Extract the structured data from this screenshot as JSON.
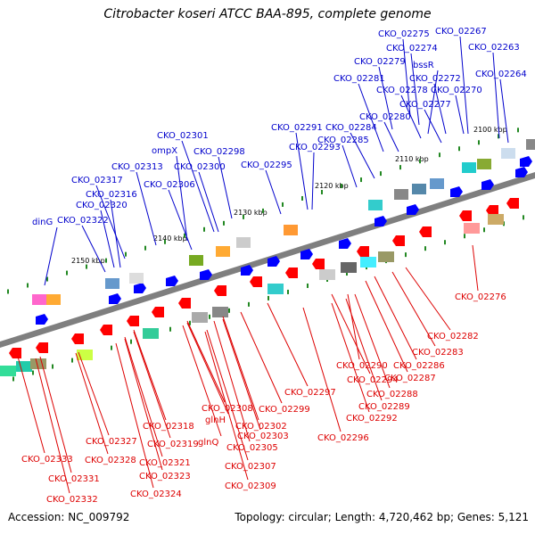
{
  "header": {
    "title": "Citrobacter koseri ATCC BAA-895, complete genome"
  },
  "footer": {
    "accession": "Accession: NC_009792",
    "topology": "Topology: circular; Length: 4,720,462 bp; Genes: 5,121"
  },
  "colors": {
    "backbone": "#7f7f7f",
    "forward_label": "#0000cc",
    "reverse_label": "#dd0000",
    "forward_feature": "#0000ff",
    "reverse_feature": "#ff0000",
    "tick": "#228822"
  },
  "scale_labels": [
    "2100 kbp",
    "2110 kbp",
    "2120 kbp",
    "2130 kbp",
    "2140 kbp",
    "2150 kbp"
  ],
  "forward_genes": [
    "CKO_02275",
    "CKO_02267",
    "CKO_02274",
    "CKO_02263",
    "CKO_02279",
    "bssR",
    "CKO_02264",
    "CKO_02281",
    "CKO_02272",
    "CKO_02278",
    "CKO_02270",
    "CKO_02277",
    "CKO_02280",
    "CKO_02284",
    "CKO_02291",
    "CKO_02285",
    "CKO_02293",
    "CKO_02301",
    "CKO_02298",
    "ompX",
    "CKO_02300",
    "CKO_02295",
    "CKO_02313",
    "CKO_02317",
    "CKO_02306",
    "CKO_02316",
    "CKO_02320",
    "CKO_02322",
    "dinG"
  ],
  "reverse_genes": [
    "CKO_02276",
    "CKO_02282",
    "CKO_02283",
    "CKO_02290",
    "CKO_02286",
    "CKO_02287",
    "CKO_02294",
    "CKO_02297",
    "CKO_02288",
    "CKO_02289",
    "CKO_02299",
    "CKO_02292",
    "CKO_02308",
    "glnH",
    "CKO_02302",
    "CKO_02318",
    "CKO_02303",
    "CKO_02296",
    "glnQ",
    "CKO_02305",
    "CKO_02327",
    "CKO_02319",
    "CKO_02307",
    "CKO_02328",
    "CKO_02321",
    "CKO_02333",
    "CKO_02323",
    "CKO_02309",
    "CKO_02331",
    "CKO_02324",
    "CKO_02332"
  ]
}
